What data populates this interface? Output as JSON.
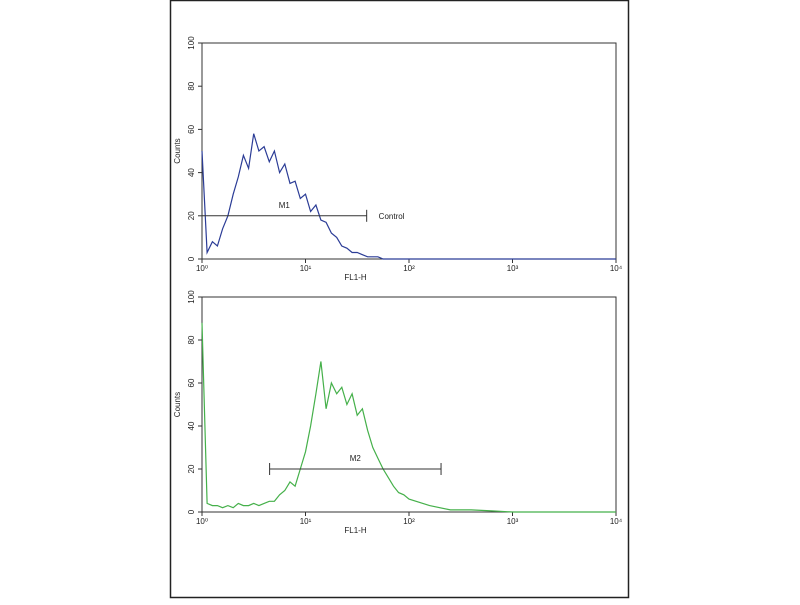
{
  "chart_data": [
    {
      "type": "line",
      "log_x": true,
      "xlabel": "FL1-H",
      "ylabel": "Counts",
      "x": [
        1,
        1.12,
        1.26,
        1.41,
        1.58,
        1.78,
        2,
        2.24,
        2.51,
        2.82,
        3.16,
        3.55,
        3.98,
        4.47,
        5.01,
        5.62,
        6.31,
        7.08,
        7.94,
        8.91,
        10,
        11.2,
        12.6,
        14.1,
        15.8,
        17.8,
        20,
        22.4,
        25.1,
        28.2,
        31.6,
        35.5,
        39.8,
        44.7,
        50.1,
        56.2,
        63.1,
        70.8,
        79.4,
        89.1,
        100,
        158,
        251,
        398,
        631,
        1000,
        1585,
        2512,
        3981,
        6310,
        10000
      ],
      "series": [
        {
          "color": "#2b3c96",
          "values": [
            50,
            3,
            8,
            6,
            14,
            20,
            30,
            38,
            48,
            42,
            58,
            50,
            52,
            45,
            50,
            40,
            44,
            35,
            36,
            28,
            30,
            22,
            25,
            18,
            17,
            12,
            10,
            6,
            5,
            3,
            3,
            2,
            1,
            1,
            1,
            0,
            0,
            0,
            0,
            0,
            0,
            0,
            0,
            0,
            0,
            0,
            0,
            0,
            0,
            0,
            0
          ]
        }
      ],
      "xlim": [
        1,
        10000
      ],
      "xticks": [
        {
          "value": 1,
          "label": "10⁰"
        },
        {
          "value": 10,
          "label": "10¹"
        },
        {
          "value": 100,
          "label": "10²"
        },
        {
          "value": 1000,
          "label": "10³"
        },
        {
          "value": 10000,
          "label": "10⁴"
        }
      ],
      "ylim": [
        0,
        100
      ],
      "yticks": [
        0,
        20,
        40,
        60,
        80,
        100
      ],
      "gate": {
        "label": "M1",
        "range": [
          1,
          39
        ],
        "level": 20
      },
      "annotation": "Control"
    },
    {
      "type": "line",
      "log_x": true,
      "xlabel": "FL1-H",
      "ylabel": "Counts",
      "x": [
        1,
        1.12,
        1.26,
        1.41,
        1.58,
        1.78,
        2,
        2.24,
        2.51,
        2.82,
        3.16,
        3.55,
        3.98,
        4.47,
        5.01,
        5.62,
        6.31,
        7.08,
        7.94,
        8.91,
        10,
        11.2,
        12.6,
        14.1,
        15.8,
        17.8,
        20,
        22.4,
        25.1,
        28.2,
        31.6,
        35.5,
        39.8,
        44.7,
        50.1,
        56.2,
        63.1,
        70.8,
        79.4,
        89.1,
        100,
        158,
        251,
        398,
        631,
        1000,
        1585,
        2512,
        3981,
        6310,
        10000
      ],
      "series": [
        {
          "color": "#45b04a",
          "values": [
            88,
            4,
            3,
            3,
            2,
            3,
            2,
            4,
            3,
            3,
            4,
            3,
            4,
            5,
            5,
            8,
            10,
            14,
            12,
            20,
            28,
            40,
            55,
            70,
            48,
            60,
            55,
            58,
            50,
            55,
            45,
            48,
            38,
            30,
            25,
            20,
            16,
            12,
            9,
            8,
            6,
            3,
            1,
            1,
            0.5,
            0,
            0,
            0,
            0,
            0,
            0
          ]
        }
      ],
      "xlim": [
        1,
        10000
      ],
      "xticks": [
        {
          "value": 1,
          "label": "10⁰"
        },
        {
          "value": 10,
          "label": "10¹"
        },
        {
          "value": 100,
          "label": "10²"
        },
        {
          "value": 1000,
          "label": "10³"
        },
        {
          "value": 10000,
          "label": "10⁴"
        }
      ],
      "ylim": [
        0,
        100
      ],
      "yticks": [
        0,
        20,
        40,
        60,
        80,
        100
      ],
      "gate": {
        "label": "M2",
        "range": [
          4.5,
          204
        ],
        "level": 20
      }
    }
  ]
}
